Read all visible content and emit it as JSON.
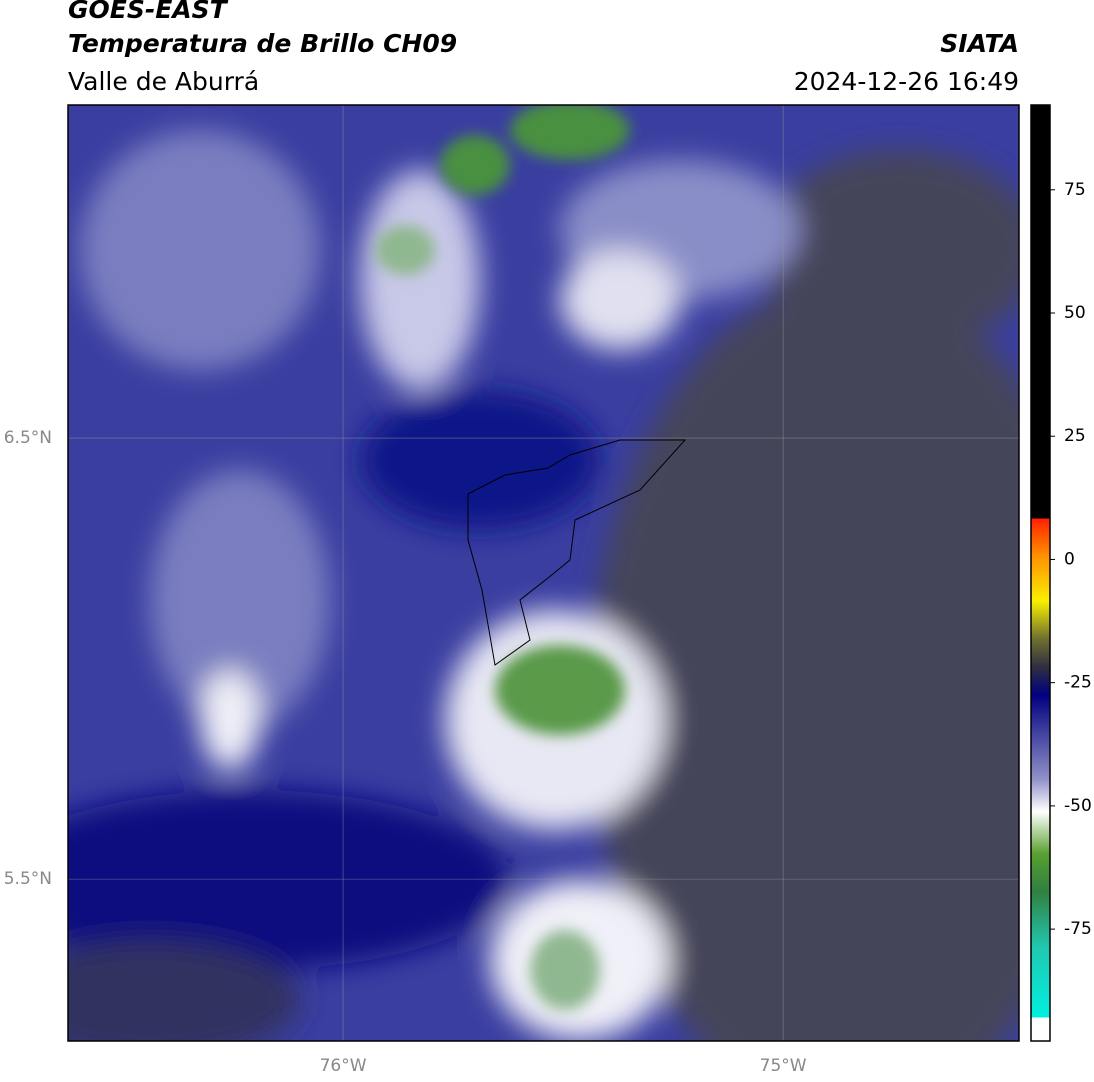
{
  "header": {
    "source": "GOES-EAST",
    "title": "Temperatura de Brillo CH09",
    "region": "Valle de Aburrá",
    "agency": "SIATA",
    "datetime": "2024-12-26 16:49"
  },
  "map": {
    "xlim": [
      -76.625,
      -74.464
    ],
    "ylim": [
      5.133,
      7.255
    ],
    "xticks": [
      {
        "value": -76,
        "label": "76°W"
      },
      {
        "value": -75,
        "label": "75°W"
      }
    ],
    "yticks": [
      {
        "value": 6.5,
        "label": "6.5°N"
      },
      {
        "value": 5.5,
        "label": "5.5°N"
      }
    ],
    "grid": true
  },
  "colorbar": {
    "lim": [
      -97.7,
      92.2
    ],
    "ticks": [
      75,
      50,
      25,
      0,
      -25,
      -50,
      -75
    ]
  }
}
